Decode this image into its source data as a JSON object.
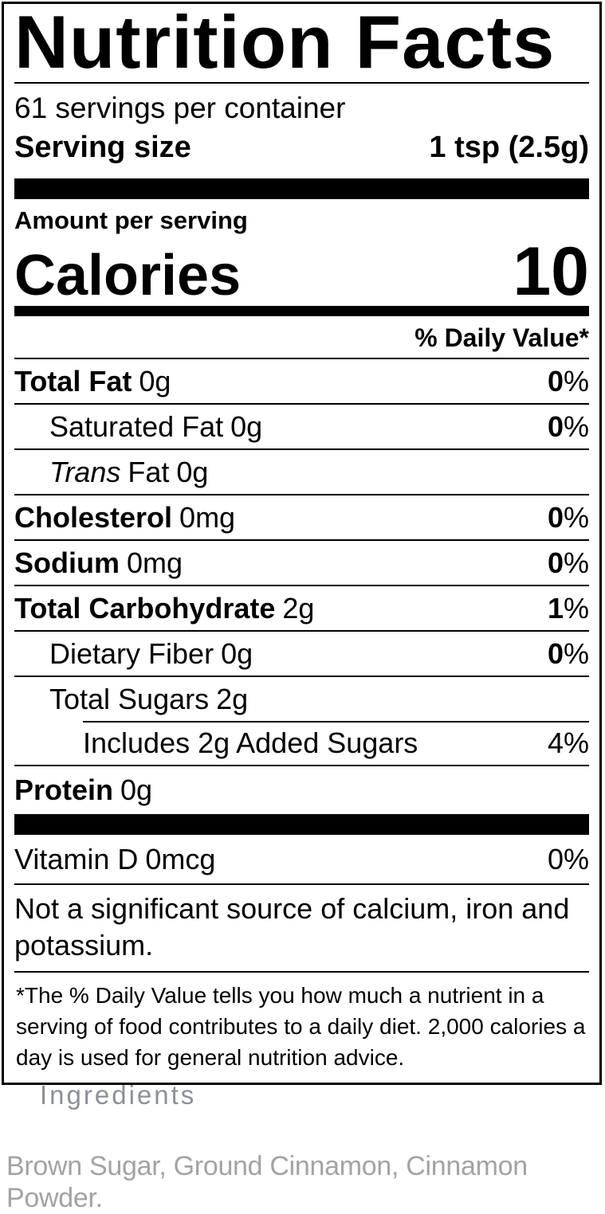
{
  "nutrition_label": {
    "title": "Nutrition Facts",
    "servings_per_container": "61 servings per container",
    "serving_size": {
      "label": "Serving size",
      "value": "1 tsp (2.5g)"
    },
    "amount_per_serving": "Amount per serving",
    "calories": {
      "label": "Calories",
      "value": "10"
    },
    "daily_value_header": "% Daily Value*",
    "rows": [
      {
        "name": "Total Fat",
        "amount": "0g",
        "dv_num": "0",
        "dv_sym": "%"
      },
      {
        "name": "Saturated Fat",
        "amount": "0g",
        "dv_num": "0",
        "dv_sym": "%"
      },
      {
        "name_italic": "Trans",
        "name": "Fat",
        "amount": "0g"
      },
      {
        "name": "Cholesterol",
        "amount": "0mg",
        "dv_num": "0",
        "dv_sym": "%"
      },
      {
        "name": "Sodium",
        "amount": "0mg",
        "dv_num": "0",
        "dv_sym": "%"
      },
      {
        "name": "Total Carbohydrate",
        "amount": "2g",
        "dv_num": "1",
        "dv_sym": "%"
      },
      {
        "name": "Dietary Fiber",
        "amount": "0g",
        "dv_num": "0",
        "dv_sym": "%"
      },
      {
        "name": "Total Sugars",
        "amount": "2g"
      },
      {
        "name": "Includes 2g Added Sugars",
        "dv_num": "4",
        "dv_sym": "%"
      },
      {
        "name": "Protein",
        "amount": "0g"
      }
    ],
    "vitamins": [
      {
        "name": "Vitamin D",
        "amount": "0mcg",
        "dv_num": "0",
        "dv_sym": "%"
      }
    ],
    "not_significant_note": "Not a significant source of calcium, iron and potassium.",
    "footnote": "*The % Daily Value tells you how much a nutrient in a serving of food contributes to a daily diet. 2,000 calories a day is used for general nutrition advice."
  },
  "ingredients": {
    "heading": "Ingredients",
    "list": "Brown Sugar, Ground Cinnamon, Cinnamon Powder."
  },
  "colors": {
    "label_text": "#000000",
    "label_background": "#ffffff",
    "muted_heading": "#8c909a",
    "muted_text": "#a3a3a6"
  }
}
